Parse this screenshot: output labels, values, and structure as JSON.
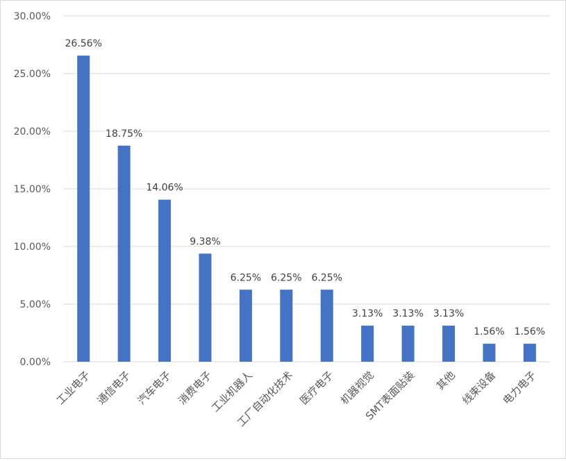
{
  "chart_data": {
    "type": "bar",
    "title": "",
    "xlabel": "",
    "ylabel": "",
    "ylim": [
      0,
      30
    ],
    "grid": true,
    "legend": "none",
    "y_ticks": [
      "0.00%",
      "5.00%",
      "10.00%",
      "15.00%",
      "20.00%",
      "25.00%",
      "30.00%"
    ],
    "categories": [
      "工业电子",
      "通信电子",
      "汽车电子",
      "消费电子",
      "工业机器人",
      "工厂自动化技术",
      "医疗电子",
      "机器视觉",
      "SMT表面贴装",
      "其他",
      "线束设备",
      "电力电子"
    ],
    "values": [
      26.56,
      18.75,
      14.06,
      9.38,
      6.25,
      6.25,
      6.25,
      3.13,
      3.13,
      3.13,
      1.56,
      1.56
    ],
    "data_labels": [
      "26.56%",
      "18.75%",
      "14.06%",
      "9.38%",
      "6.25%",
      "6.25%",
      "6.25%",
      "3.13%",
      "3.13%",
      "3.13%",
      "1.56%",
      "1.56%"
    ],
    "bar_color": "#4472c4",
    "grid_color": "#d9d9d9",
    "text_color": "#595959"
  }
}
